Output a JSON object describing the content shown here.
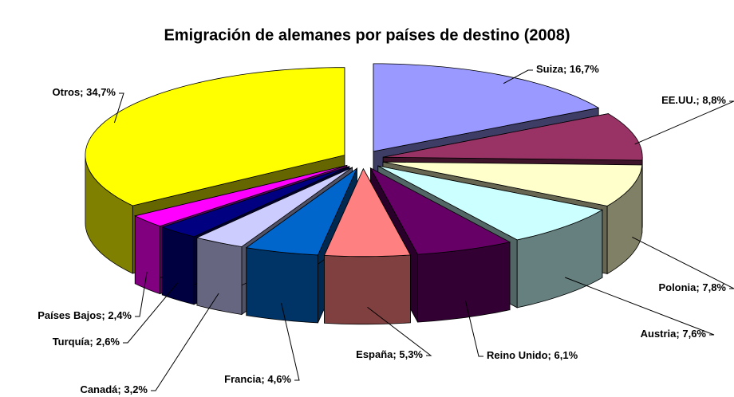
{
  "chart_data": {
    "type": "pie3d",
    "title": "Emigración de alemanes por países de destino (2008)",
    "categories": [
      "Suiza",
      "EE.UU.",
      "Polonia",
      "Austria",
      "Reino Unido",
      "España",
      "Francia",
      "Canadá",
      "Turquía",
      "Países Bajos",
      "Otros"
    ],
    "values": [
      16.7,
      8.8,
      7.8,
      7.6,
      6.1,
      5.3,
      4.6,
      3.2,
      2.6,
      2.4,
      34.7
    ],
    "value_labels": [
      "16,7%",
      "8,8%",
      "7,8%",
      "7,6%",
      "6,1%",
      "5,3%",
      "4,6%",
      "3,2%",
      "2,6%",
      "2,4%",
      "34,7%"
    ],
    "label_separator": "; ",
    "colors": [
      "#9999ff",
      "#993366",
      "#ffffcc",
      "#ccffff",
      "#660066",
      "#ff8080",
      "#0066cc",
      "#ccccff",
      "#000080",
      "#ff00ff",
      "#ffff00"
    ]
  }
}
